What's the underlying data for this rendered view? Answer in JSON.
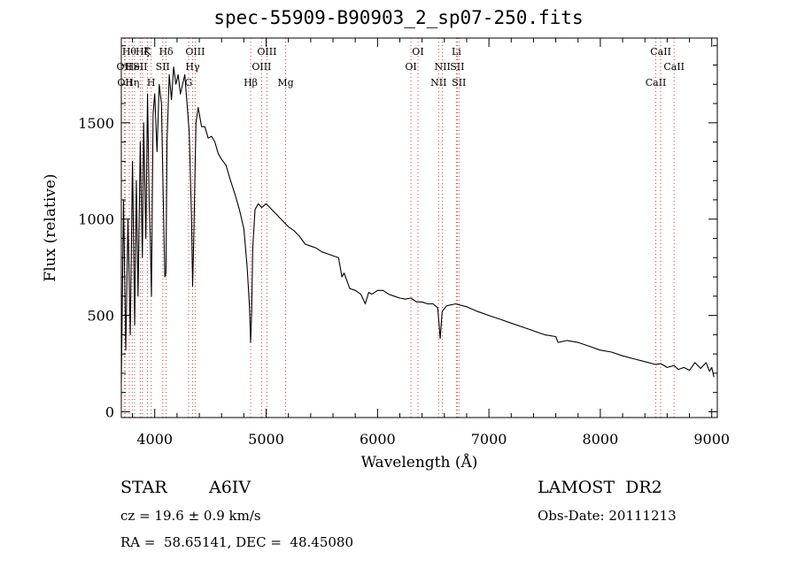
{
  "chart_data": {
    "type": "line",
    "title": "spec-55909-B90903_2_sp07-250.fits",
    "xlabel": "Wavelength (Å)",
    "ylabel": "Flux (relative)",
    "xlim": [
      3700,
      9050
    ],
    "ylim": [
      -30,
      1940
    ],
    "xticks": [
      4000,
      5000,
      6000,
      7000,
      8000,
      9000
    ],
    "yticks": [
      0,
      500,
      1000,
      1500
    ],
    "grid": false,
    "series": [
      {
        "x": [
          3700,
          3720,
          3740,
          3760,
          3780,
          3800,
          3820,
          3835,
          3850,
          3870,
          3889,
          3900,
          3920,
          3935,
          3950,
          3960,
          3970,
          3985,
          4000,
          4020,
          4040,
          4060,
          4080,
          4090,
          4101,
          4110,
          4130,
          4150,
          4170,
          4190,
          4210,
          4230,
          4250,
          4270,
          4290,
          4310,
          4330,
          4340,
          4350,
          4370,
          4390,
          4420,
          4450,
          4480,
          4510,
          4540,
          4570,
          4600,
          4640,
          4680,
          4720,
          4760,
          4800,
          4830,
          4850,
          4861,
          4870,
          4880,
          4900,
          4930,
          4960,
          5000,
          5050,
          5100,
          5150,
          5200,
          5250,
          5300,
          5350,
          5400,
          5450,
          5500,
          5550,
          5600,
          5650,
          5680,
          5700,
          5750,
          5800,
          5850,
          5890,
          5920,
          5950,
          6000,
          6050,
          6100,
          6150,
          6200,
          6250,
          6300,
          6350,
          6400,
          6450,
          6500,
          6540,
          6563,
          6580,
          6620,
          6700,
          6800,
          6900,
          7000,
          7100,
          7200,
          7300,
          7400,
          7500,
          7600,
          7620,
          7700,
          7800,
          7900,
          8000,
          8100,
          8200,
          8300,
          8400,
          8500,
          8542,
          8600,
          8662,
          8700,
          8750,
          8800,
          8850,
          8900,
          8950,
          8980,
          9000,
          9020
        ],
        "y": [
          150,
          1100,
          320,
          1000,
          400,
          1300,
          450,
          1200,
          600,
          1400,
          800,
          1500,
          900,
          1650,
          1100,
          900,
          600,
          1550,
          1650,
          1350,
          1700,
          1600,
          1000,
          700,
          720,
          1400,
          1750,
          1620,
          1790,
          1700,
          1750,
          1650,
          1700,
          1750,
          1600,
          1450,
          1000,
          650,
          900,
          1500,
          1580,
          1480,
          1480,
          1420,
          1430,
          1400,
          1340,
          1310,
          1280,
          1200,
          1130,
          1050,
          950,
          750,
          550,
          360,
          520,
          850,
          1050,
          1080,
          1060,
          1080,
          1050,
          1020,
          990,
          960,
          940,
          910,
          870,
          860,
          850,
          830,
          820,
          810,
          800,
          700,
          720,
          640,
          630,
          610,
          560,
          620,
          610,
          630,
          630,
          610,
          600,
          590,
          585,
          590,
          570,
          570,
          560,
          560,
          540,
          380,
          520,
          550,
          560,
          545,
          520,
          500,
          480,
          460,
          440,
          420,
          400,
          390,
          360,
          370,
          360,
          340,
          320,
          310,
          290,
          275,
          260,
          245,
          250,
          230,
          240,
          220,
          230,
          215,
          255,
          225,
          255,
          210,
          230,
          180
        ]
      }
    ],
    "line_markers": [
      {
        "x": 3727,
        "label": "OII",
        "row": 2
      },
      {
        "x": 3734,
        "label": "OII",
        "row": 3
      },
      {
        "x": 3771,
        "label": "Hθ",
        "row": 1
      },
      {
        "x": 3798,
        "label": "Hη",
        "row": 3
      },
      {
        "x": 3819,
        "label": "HeI",
        "row": 2
      },
      {
        "x": 3870,
        "label": "SII",
        "row": 2
      },
      {
        "x": 3889,
        "label": "Hζ",
        "row": 1
      },
      {
        "x": 3934,
        "label": "K",
        "row": 1
      },
      {
        "x": 3968,
        "label": "H",
        "row": 3
      },
      {
        "x": 4072,
        "label": "SII",
        "row": 2
      },
      {
        "x": 4102,
        "label": "Hδ",
        "row": 1
      },
      {
        "x": 4304,
        "label": "G",
        "row": 3
      },
      {
        "x": 4340,
        "label": "Hγ",
        "row": 2
      },
      {
        "x": 4363,
        "label": "OIII",
        "row": 1
      },
      {
        "x": 4861,
        "label": "Hβ",
        "row": 3
      },
      {
        "x": 4959,
        "label": "OIII",
        "row": 2
      },
      {
        "x": 5007,
        "label": "OIII",
        "row": 1
      },
      {
        "x": 5175,
        "label": "Mg",
        "row": 3
      },
      {
        "x": 6300,
        "label": "OI",
        "row": 2
      },
      {
        "x": 6363,
        "label": "OI",
        "row": 1
      },
      {
        "x": 6548,
        "label": "NII",
        "row": 3
      },
      {
        "x": 6583,
        "label": "NII",
        "row": 2
      },
      {
        "x": 6708,
        "label": "Li",
        "row": 1
      },
      {
        "x": 6716,
        "label": "SII",
        "row": 2
      },
      {
        "x": 6731,
        "label": "SII",
        "row": 3
      },
      {
        "x": 8498,
        "label": "CaII",
        "row": 3
      },
      {
        "x": 8542,
        "label": "CaII",
        "row": 1
      },
      {
        "x": 8662,
        "label": "CaII",
        "row": 2
      }
    ]
  },
  "info": {
    "class_label": "STAR",
    "subclass": "A6IV",
    "survey": "LAMOST  DR2",
    "redshift": "cz = 19.6 ± 0.9 km/s",
    "obs_date": "Obs-Date: 20111213",
    "coords": "RA =  58.65141, DEC =  48.45080"
  },
  "colors": {
    "spectrum": "#000000",
    "line_markers": "#d04040",
    "axes": "#000000"
  }
}
